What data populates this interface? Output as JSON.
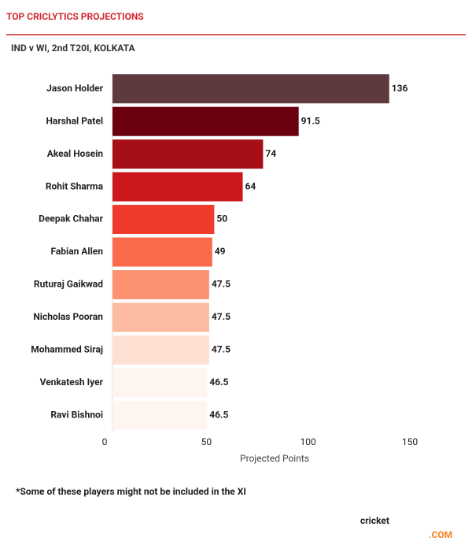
{
  "chart_data": {
    "type": "barh",
    "title": "TOP CRICLYTICS PROJECTIONS",
    "subtitle": "IND v WI, 2nd T20I, KOLKATA",
    "x_label": "Projected Points",
    "footnote": "*Some of these players might not be included in the XI",
    "logo": {
      "text": "cricket",
      "suffix": ".COM"
    },
    "categories": [
      "Jason Holder",
      "Harshal Patel",
      "Akeal Hosein",
      "Rohit Sharma",
      "Deepak Chahar",
      "Fabian Allen",
      "Ruturaj Gaikwad",
      "Nicholas Pooran",
      "Mohammed Siraj",
      "Venkatesh Iyer",
      "Ravi Bishnoi"
    ],
    "values": [
      136,
      91.5,
      74,
      64,
      50,
      49,
      47.5,
      47.5,
      47.5,
      46.5,
      46.5
    ],
    "colors": [
      "#5e3a3f",
      "#6b0010",
      "#a50f15",
      "#cb181d",
      "#ef3b2c",
      "#fb6a4a",
      "#fc9272",
      "#fcbba1",
      "#fee0d2",
      "#fff5f0",
      "#fff5f0"
    ],
    "xlim": [
      0,
      150
    ],
    "xticks": [
      0,
      50,
      100,
      150
    ]
  }
}
